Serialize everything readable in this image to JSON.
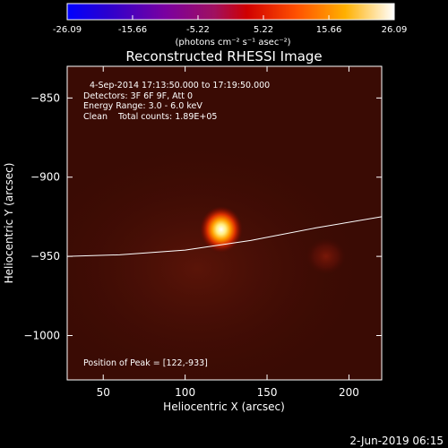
{
  "colorbar": {
    "tick_labels": [
      "-26.09",
      "-15.66",
      "-5.22",
      "5.22",
      "15.66",
      "26.09"
    ],
    "units": "(photons cm⁻² s⁻¹ asec⁻²)",
    "range": [
      -26.09,
      26.09
    ]
  },
  "chart_data": {
    "type": "heatmap",
    "title": "Reconstructed RHESSI Image",
    "xlabel": "Heliocentric X (arcsec)",
    "ylabel": "Heliocentric Y (arcsec)",
    "xlim": [
      28,
      220
    ],
    "ylim": [
      -1028,
      -830
    ],
    "x_ticks": [
      50,
      100,
      150,
      200
    ],
    "y_ticks": [
      -850,
      -900,
      -950,
      -1000
    ],
    "x_tick_labels": [
      "50",
      "100",
      "150",
      "200"
    ],
    "y_tick_labels": [
      "−850",
      "−900",
      "−950",
      "−1000"
    ],
    "info_lines": [
      "4-Sep-2014 17:13:50.000 to 17:19:50.000",
      "Detectors: 3F 6F 9F, Att 0",
      "Energy Range: 3.0 - 6.0 keV",
      "Clean    Total counts: 1.89E+05"
    ],
    "peak_label": "Position of Peak = [122,-933]",
    "peak": [
      122,
      -933
    ],
    "sources": [
      {
        "x": 122,
        "y": -933,
        "intensity": 26.09
      },
      {
        "x": 186,
        "y": -950,
        "intensity": 5.5
      }
    ],
    "limb_curve": [
      [
        28,
        -950
      ],
      [
        60,
        -949
      ],
      [
        100,
        -946
      ],
      [
        140,
        -940
      ],
      [
        180,
        -932
      ],
      [
        220,
        -925
      ]
    ]
  },
  "footer": {
    "date": "2-Jun-2019 06:15"
  }
}
